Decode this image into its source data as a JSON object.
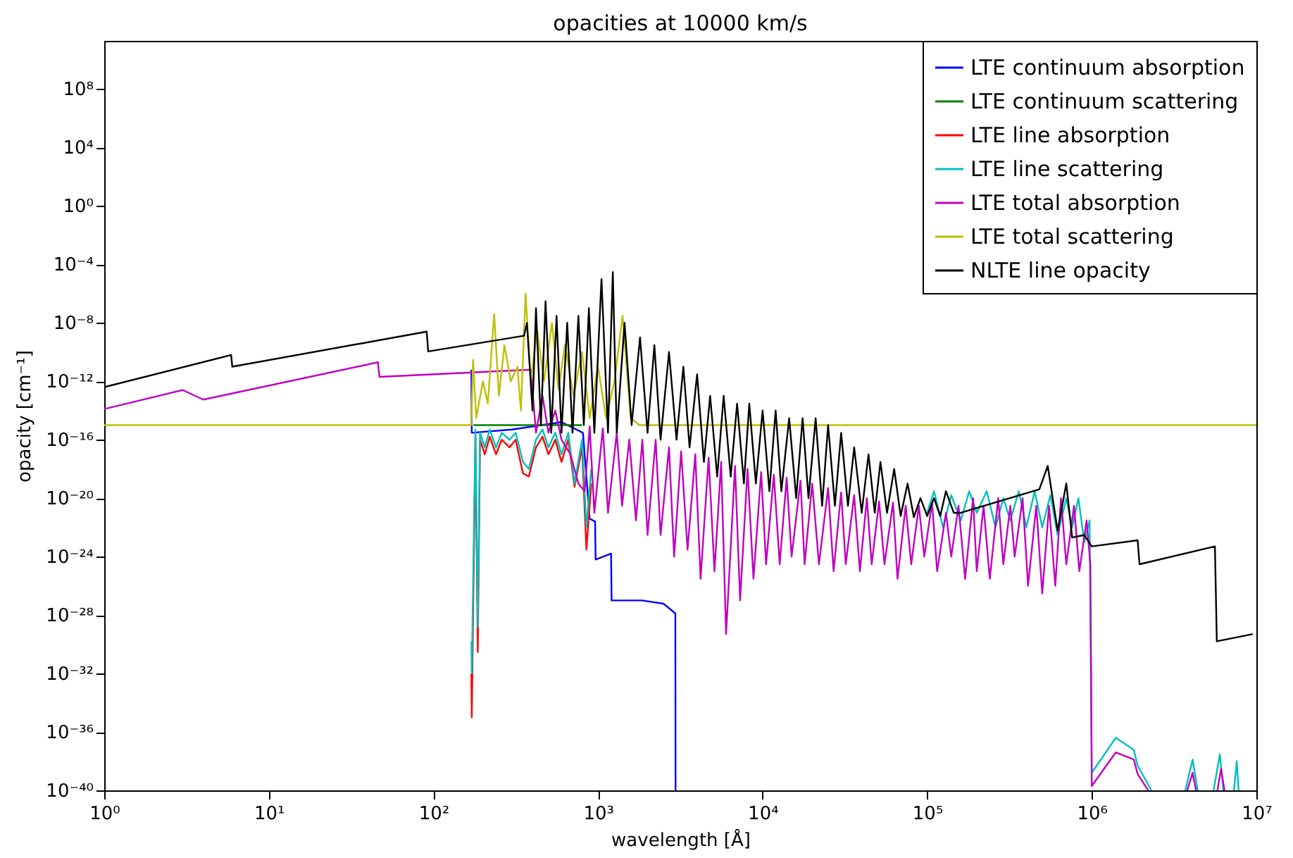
{
  "chart_data": {
    "type": "line",
    "title": "opacities at 10000 km/s",
    "xlabel": "wavelength [Å]",
    "ylabel": "opacity [cm⁻¹]",
    "log": "xy",
    "legend": "top right",
    "line_style": "solid",
    "xlim": [
      1,
      10000000
    ],
    "ylim": [
      1e-40,
      200000000000.0
    ],
    "xticks": [
      {
        "value": 1,
        "label": "10⁰"
      },
      {
        "value": 10,
        "label": "10¹"
      },
      {
        "value": 100,
        "label": "10²"
      },
      {
        "value": 1000,
        "label": "10³"
      },
      {
        "value": 10000,
        "label": "10⁴"
      },
      {
        "value": 100000,
        "label": "10⁵"
      },
      {
        "value": 1000000,
        "label": "10⁶"
      },
      {
        "value": 10000000,
        "label": "10⁷"
      }
    ],
    "yticks": [
      {
        "value": 1e-40,
        "label": "10⁻⁴⁰"
      },
      {
        "value": 1e-36,
        "label": "10⁻³⁶"
      },
      {
        "value": 1e-32,
        "label": "10⁻³²"
      },
      {
        "value": 1e-28,
        "label": "10⁻²⁸"
      },
      {
        "value": 1e-24,
        "label": "10⁻²⁴"
      },
      {
        "value": 1e-20,
        "label": "10⁻²⁰"
      },
      {
        "value": 1e-16,
        "label": "10⁻¹⁶"
      },
      {
        "value": 1e-12,
        "label": "10⁻¹²"
      },
      {
        "value": 1e-08,
        "label": "10⁻⁸"
      },
      {
        "value": 0.0001,
        "label": "10⁻⁴"
      },
      {
        "value": 1,
        "label": "10⁰"
      },
      {
        "value": 10000,
        "label": "10⁴"
      },
      {
        "value": 100000000,
        "label": "10⁸"
      }
    ],
    "series": [
      {
        "name": "LTE continuum absorption",
        "color": "#0000ff",
        "x": [
          170,
          171,
          300,
          600,
          810,
          890,
          960,
          967,
          1200,
          1210,
          1850,
          2500,
          2950,
          2960
        ],
        "values": [
          6.3e-12,
          3e-16,
          5e-16,
          1.6e-15,
          3e-16,
          4e-22,
          2.5e-22,
          6.3e-25,
          1.6e-24,
          1e-27,
          1e-27,
          6e-28,
          1.3e-28,
          1e-40
        ]
      },
      {
        "name": "LTE continuum scattering",
        "color": "#008000",
        "x": [
          175,
          800
        ],
        "values": [
          1e-15,
          1e-15
        ]
      },
      {
        "name": "LTE line absorption",
        "color": "#ff0000",
        "x": [
          170,
          171,
          180,
          186,
          192,
          205,
          220,
          240,
          260,
          290,
          316,
          350,
          380,
          420,
          460,
          500,
          550,
          600,
          660,
          720,
          800,
          850,
          910
        ],
        "values": [
          1e-32,
          1e-35,
          1.6e-16,
          3e-31,
          1e-16,
          1e-17,
          1.6e-16,
          1e-17,
          1e-16,
          3e-17,
          1e-16,
          5e-19,
          3e-19,
          3e-17,
          1.6e-16,
          1e-17,
          1e-16,
          3e-18,
          1e-16,
          6e-20,
          3e-17,
          3e-24,
          1e-19
        ]
      },
      {
        "name": "LTE line scattering",
        "color": "#00bfbf",
        "x": [
          170,
          171,
          180,
          186,
          192,
          205,
          220,
          240,
          260,
          290,
          316,
          350,
          380,
          420,
          460,
          500,
          550,
          600,
          660,
          720,
          800,
          850,
          910,
          950,
          100000,
          110000,
          125000,
          140000,
          160000,
          180000,
          200000,
          230000,
          260000,
          290000,
          320000,
          360000,
          400000,
          450000,
          500000,
          560000,
          620000,
          700000,
          760000,
          830000,
          900000,
          970000,
          1000000,
          1400000,
          1800000,
          1900000,
          2300000,
          2400000,
          3700000,
          4100000,
          4400000,
          4600000,
          5500000,
          6000000,
          6300000,
          6600000,
          7300000,
          7600000,
          7800000
        ],
        "values": [
          1.6e-30,
          1e-32,
          5e-16,
          1.6e-29,
          3e-16,
          3e-17,
          5e-16,
          3e-17,
          3e-16,
          1e-16,
          3e-16,
          3e-18,
          1e-18,
          1e-16,
          5e-16,
          3e-17,
          3e-16,
          1e-17,
          3e-16,
          1e-19,
          1e-16,
          1e-22,
          1e-18,
          null,
          1e-21,
          3e-20,
          1e-22,
          1.6e-20,
          3e-22,
          3e-20,
          1e-21,
          3e-20,
          1e-22,
          1e-20,
          3e-22,
          3e-20,
          1e-22,
          3e-20,
          1e-22,
          1.6e-20,
          3e-23,
          1e-20,
          1e-22,
          1e-20,
          1e-23,
          3e-22,
          1.6e-39,
          4e-37,
          6e-38,
          5e-39,
          1e-40,
          null,
          1e-40,
          1.3e-38,
          1e-40,
          null,
          1e-40,
          3e-38,
          1e-40,
          null,
          1e-40,
          1e-38,
          1e-40
        ]
      },
      {
        "name": "LTE total absorption",
        "color": "#bf00bf",
        "x": [
          1,
          3,
          4,
          46,
          47,
          390,
          420,
          460,
          500,
          550,
          600,
          680,
          760,
          830,
          890,
          950,
          1070,
          1150,
          1300,
          1400,
          1550,
          1700,
          1860,
          2000,
          2240,
          2400,
          2700,
          2900,
          3200,
          3500,
          3900,
          4200,
          4700,
          5100,
          5600,
          6000,
          6800,
          7300,
          8100,
          8800,
          9800,
          10500,
          11700,
          12700,
          14000,
          15000,
          17000,
          18000,
          20000,
          22000,
          25000,
          27000,
          30000,
          32000,
          36000,
          39000,
          43000,
          46000,
          51000,
          55000,
          62000,
          66000,
          74000,
          80000,
          89000,
          96000,
          107000,
          115000,
          130000,
          140000,
          155000,
          170000,
          190000,
          200000,
          220000,
          240000,
          270000,
          290000,
          320000,
          340000,
          380000,
          410000,
          460000,
          500000,
          550000,
          600000,
          650000,
          700000,
          780000,
          840000,
          930000,
          980000,
          1000000,
          1400000,
          1800000,
          1900000,
          2200000,
          2300000,
          3800000,
          4100000,
          4300000,
          4500000,
          5800000,
          6100000,
          6400000
        ],
        "values": [
          1.26e-14,
          2.5e-13,
          5.6e-14,
          2e-11,
          2e-12,
          6.3e-12,
          3e-16,
          1e-13,
          3e-16,
          1e-14,
          1e-16,
          1e-17,
          1e-19,
          3e-20,
          8e-16,
          1e-21,
          6e-16,
          1e-21,
          3e-16,
          3e-21,
          1e-16,
          3e-22,
          1e-16,
          3e-23,
          1e-16,
          3e-23,
          3e-17,
          1e-24,
          1.6e-17,
          3e-24,
          1e-17,
          3e-26,
          6e-18,
          1e-25,
          3e-18,
          5e-30,
          1.6e-18,
          1e-27,
          1e-18,
          3e-26,
          6e-19,
          3e-25,
          4e-19,
          3e-25,
          2.5e-19,
          1e-24,
          1.6e-19,
          3e-25,
          1e-19,
          3e-25,
          5e-20,
          1e-25,
          2.5e-20,
          3e-25,
          1.6e-20,
          1e-25,
          1e-20,
          3e-25,
          6e-21,
          3e-25,
          5e-21,
          3e-26,
          3e-21,
          3e-25,
          3e-21,
          1e-24,
          5e-21,
          1e-25,
          1e-21,
          1e-24,
          3e-21,
          3e-26,
          1e-20,
          1e-25,
          3e-21,
          3e-26,
          1e-20,
          3e-25,
          3e-21,
          1e-24,
          1e-20,
          1e-26,
          3e-21,
          3e-27,
          3e-21,
          1e-26,
          1e-20,
          3e-25,
          3e-21,
          1e-25,
          3e-22,
          3e-25,
          2e-40,
          4e-38,
          1.3e-38,
          1.3e-39,
          1e-40,
          null,
          1e-40,
          1.6e-39,
          1e-40,
          null,
          1e-40,
          3e-39,
          1e-40
        ]
      },
      {
        "name": "LTE total scattering",
        "color": "#bfbf00",
        "x": [
          1,
          170,
          174,
          182,
          200,
          214,
          234,
          250,
          270,
          295,
          324,
          340,
          363,
          390,
          427,
          470,
          525,
          575,
          630,
          710,
          800,
          890,
          1000,
          1120,
          1260,
          1410,
          1580,
          1780,
          10000000
        ],
        "values": [
          1e-15,
          1e-15,
          3e-11,
          3e-15,
          1e-12,
          3e-14,
          4e-08,
          1e-13,
          3e-10,
          1e-12,
          1e-11,
          1e-14,
          1e-06,
          1e-12,
          3e-09,
          1e-12,
          1e-08,
          3e-13,
          3e-10,
          1e-13,
          1e-10,
          3e-15,
          1e-11,
          3e-15,
          1e-12,
          3e-08,
          3e-15,
          1e-15,
          1e-15
        ]
      },
      {
        "name": "NLTE line opacity",
        "color": "#000000",
        "x": [
          1,
          5.9,
          6,
          91,
          93,
          355,
          370,
          400,
          420,
          450,
          480,
          520,
          560,
          600,
          650,
          700,
          760,
          820,
          880,
          950,
          1050,
          1150,
          1230,
          1300,
          1450,
          1600,
          1800,
          2000,
          2200,
          2400,
          2700,
          3000,
          3300,
          3600,
          4000,
          4400,
          4800,
          5300,
          5800,
          6400,
          7000,
          7700,
          8300,
          9100,
          10000,
          11000,
          12000,
          13000,
          14500,
          16000,
          17500,
          19000,
          21000,
          23000,
          25000,
          27500,
          30000,
          33000,
          36000,
          40000,
          44000,
          48000,
          52000,
          57000,
          63000,
          69000,
          76000,
          83000,
          91000,
          100000,
          110000,
          120000,
          130000,
          145000,
          160000,
          480000,
          540000,
          620000,
          700000,
          760000,
          900000,
          1000000,
          1900000,
          1950000,
          5600000,
          5750000,
          9500000
        ],
        "values": [
          4e-13,
          6.3e-11,
          1e-11,
          2.5e-09,
          1.1e-10,
          1.3e-09,
          1e-08,
          1e-14,
          1e-07,
          1e-15,
          3e-07,
          3e-16,
          3e-08,
          3e-16,
          1e-08,
          3e-16,
          3e-08,
          1e-15,
          1e-07,
          3e-16,
          1e-05,
          3e-16,
          3e-05,
          3e-16,
          1e-08,
          1e-15,
          1e-09,
          3e-16,
          3e-10,
          1e-16,
          1e-10,
          1e-16,
          1e-11,
          3e-17,
          3e-12,
          3e-18,
          1e-13,
          3e-19,
          1e-13,
          3e-19,
          3e-14,
          1e-19,
          3e-14,
          1e-19,
          1e-14,
          3e-20,
          1e-14,
          3e-20,
          3e-15,
          1e-20,
          3e-15,
          1e-20,
          3e-15,
          3e-21,
          1e-15,
          3e-21,
          3e-16,
          3e-21,
          3e-17,
          1e-21,
          1e-17,
          1e-21,
          3e-18,
          1e-21,
          1e-18,
          6e-22,
          1e-19,
          5e-22,
          1e-20,
          6e-22,
          1e-20,
          6e-22,
          3e-20,
          1e-21,
          1e-21,
          4e-20,
          1.6e-18,
          6e-23,
          1e-19,
          2e-23,
          3e-23,
          5e-24,
          1.3e-23,
          3e-25,
          5e-24,
          1.6e-30,
          5e-30
        ]
      }
    ]
  }
}
